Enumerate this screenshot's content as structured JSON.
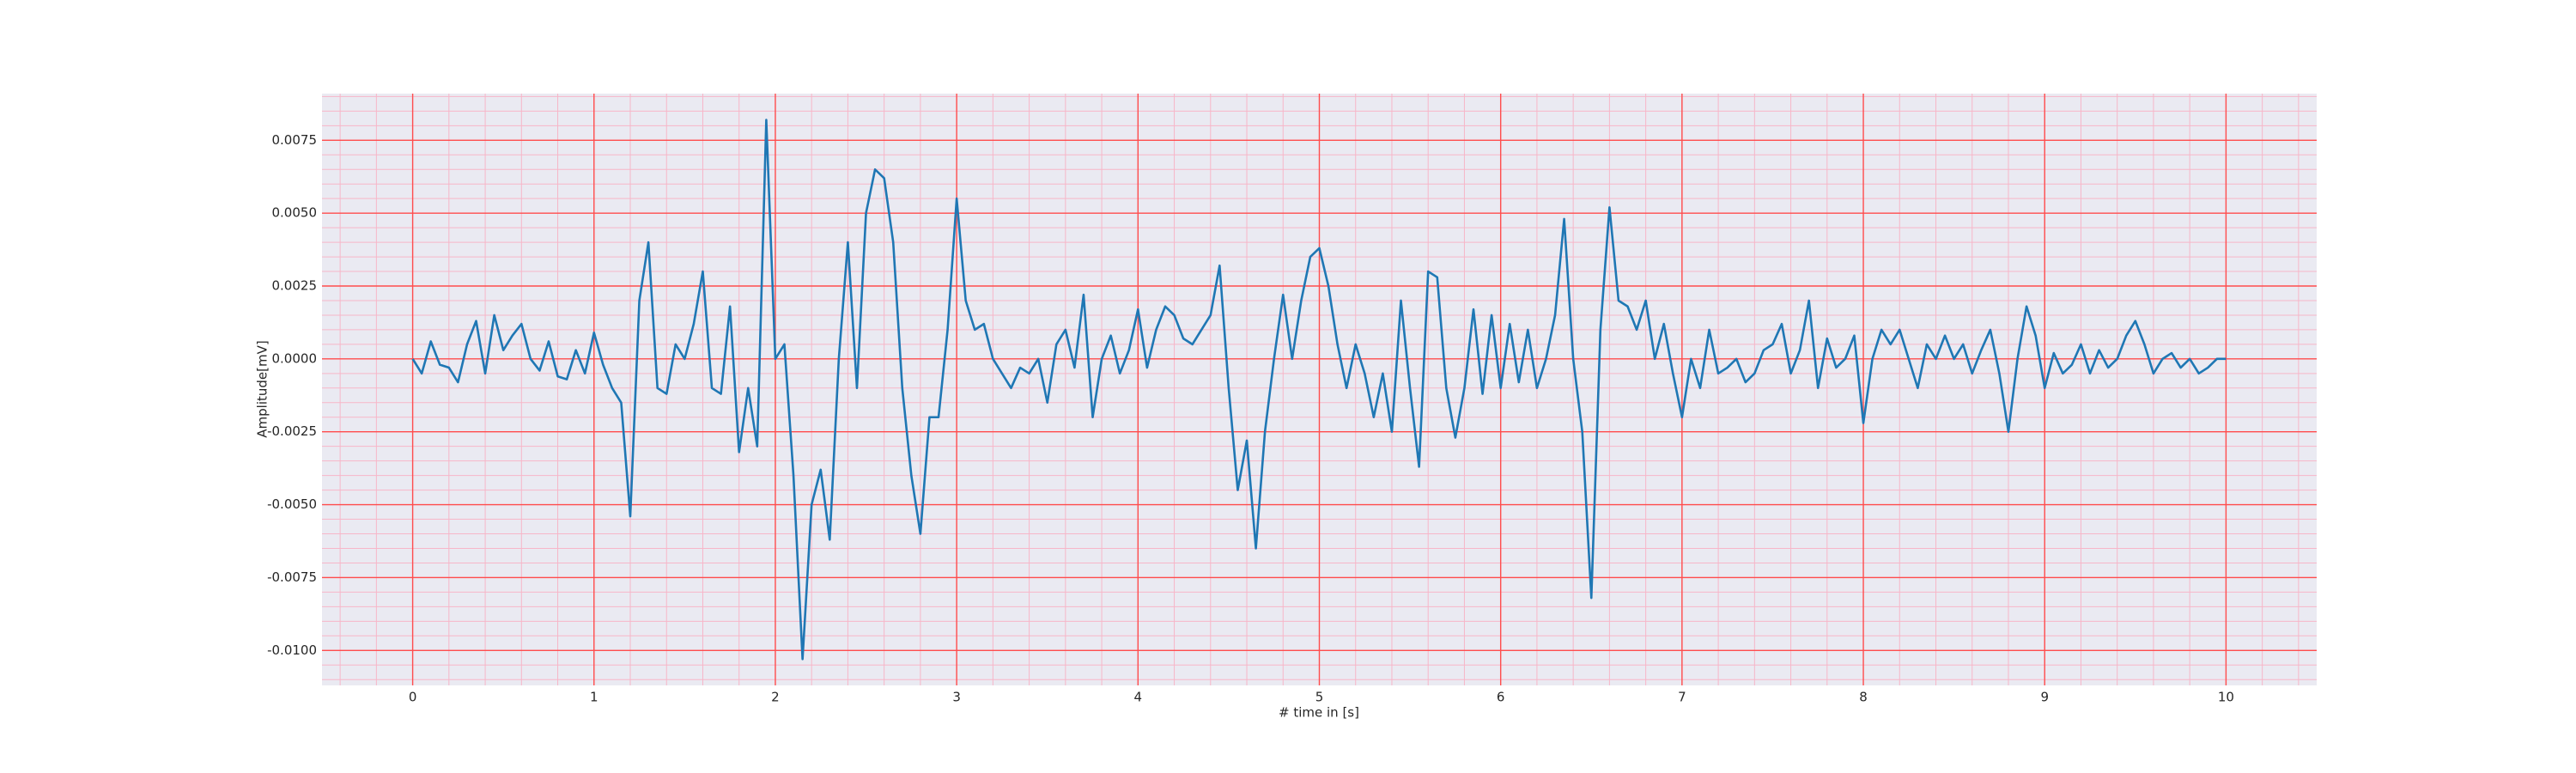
{
  "chart_data": {
    "type": "line",
    "x_label": "# time in [s]",
    "y_label": "Amplitude[mV]",
    "x": [
      0,
      0.05,
      0.1,
      0.15,
      0.2,
      0.25,
      0.3,
      0.35,
      0.4,
      0.45,
      0.5,
      0.55,
      0.6,
      0.65,
      0.7,
      0.75,
      0.8,
      0.85,
      0.9,
      0.95,
      1,
      1.05,
      1.1,
      1.15,
      1.2,
      1.25,
      1.3,
      1.35,
      1.4,
      1.45,
      1.5,
      1.55,
      1.6,
      1.65,
      1.7,
      1.75,
      1.8,
      1.85,
      1.9,
      1.95,
      2,
      2.05,
      2.1,
      2.15,
      2.2,
      2.25,
      2.3,
      2.35,
      2.4,
      2.45,
      2.5,
      2.55,
      2.6,
      2.65,
      2.7,
      2.75,
      2.8,
      2.85,
      2.9,
      2.95,
      3,
      3.05,
      3.1,
      3.15,
      3.2,
      3.25,
      3.3,
      3.35,
      3.4,
      3.45,
      3.5,
      3.55,
      3.6,
      3.65,
      3.7,
      3.75,
      3.8,
      3.85,
      3.9,
      3.95,
      4,
      4.05,
      4.1,
      4.15,
      4.2,
      4.25,
      4.3,
      4.35,
      4.4,
      4.45,
      4.5,
      4.55,
      4.6,
      4.65,
      4.7,
      4.75,
      4.8,
      4.85,
      4.9,
      4.95,
      5,
      5.05,
      5.1,
      5.15,
      5.2,
      5.25,
      5.3,
      5.35,
      5.4,
      5.45,
      5.5,
      5.55,
      5.6,
      5.65,
      5.7,
      5.75,
      5.8,
      5.85,
      5.9,
      5.95,
      6,
      6.05,
      6.1,
      6.15,
      6.2,
      6.25,
      6.3,
      6.35,
      6.4,
      6.45,
      6.5,
      6.55,
      6.6,
      6.65,
      6.7,
      6.75,
      6.8,
      6.85,
      6.9,
      6.95,
      7,
      7.05,
      7.1,
      7.15,
      7.2,
      7.25,
      7.3,
      7.35,
      7.4,
      7.45,
      7.5,
      7.55,
      7.6,
      7.65,
      7.7,
      7.75,
      7.8,
      7.85,
      7.9,
      7.95,
      8,
      8.05,
      8.1,
      8.15,
      8.2,
      8.25,
      8.3,
      8.35,
      8.4,
      8.45,
      8.5,
      8.55,
      8.6,
      8.65,
      8.7,
      8.75,
      8.8,
      8.85,
      8.9,
      8.95,
      9,
      9.05,
      9.1,
      9.15,
      9.2,
      9.25,
      9.3,
      9.35,
      9.4,
      9.45,
      9.5,
      9.55,
      9.6,
      9.65,
      9.7,
      9.75,
      9.8,
      9.85,
      9.9,
      9.95,
      10
    ],
    "series": [
      {
        "color": "#1f77b4",
        "values": [
          0,
          -0.0005,
          0.0006,
          -0.0002,
          -0.0003,
          -0.0008,
          0.0005,
          0.0013,
          -0.0005,
          0.0015,
          0.0003,
          0.0008,
          0.0012,
          0,
          -0.0004,
          0.0006,
          -0.0006,
          -0.0007,
          0.0003,
          -0.0005,
          0.0009,
          -0.0002,
          -0.001,
          -0.0015,
          -0.0054,
          0.002,
          0.004,
          -0.001,
          -0.0012,
          0.0005,
          0,
          0.0012,
          0.003,
          -0.001,
          -0.0012,
          0.0018,
          -0.0032,
          -0.001,
          -0.003,
          0.0082,
          0,
          0.0005,
          -0.004,
          -0.0103,
          -0.005,
          -0.0038,
          -0.0062,
          0,
          0.004,
          -0.001,
          0.005,
          0.0065,
          0.0062,
          0.004,
          -0.001,
          -0.004,
          -0.006,
          -0.002,
          -0.002,
          0.001,
          0.0055,
          0.002,
          0.001,
          0.0012,
          0,
          -0.0005,
          -0.001,
          -0.0003,
          -0.0005,
          0,
          -0.0015,
          0.0005,
          0.001,
          -0.0003,
          0.0022,
          -0.002,
          0,
          0.0008,
          -0.0005,
          0.0003,
          0.0017,
          -0.0003,
          0.001,
          0.0018,
          0.0015,
          0.0007,
          0.0005,
          0.001,
          0.0015,
          0.0032,
          -0.001,
          -0.0045,
          -0.0028,
          -0.0065,
          -0.0025,
          0,
          0.0022,
          0,
          0.002,
          0.0035,
          0.0038,
          0.0025,
          0.0005,
          -0.001,
          0.0005,
          -0.0005,
          -0.002,
          -0.0005,
          -0.0025,
          0.002,
          -0.001,
          -0.0037,
          0.003,
          0.0028,
          -0.001,
          -0.0027,
          -0.001,
          0.0017,
          -0.0012,
          0.0015,
          -0.001,
          0.0012,
          -0.0008,
          0.001,
          -0.001,
          0,
          0.0015,
          0.0048,
          0,
          -0.0025,
          -0.0082,
          0.001,
          0.0052,
          0.002,
          0.0018,
          0.001,
          0.002,
          0,
          0.0012,
          -0.0005,
          -0.002,
          0,
          -0.001,
          0.001,
          -0.0005,
          -0.0003,
          0,
          -0.0008,
          -0.0005,
          0.0003,
          0.0005,
          0.0012,
          -0.0005,
          0.0003,
          0.002,
          -0.001,
          0.0007,
          -0.0003,
          0,
          0.0008,
          -0.0022,
          0,
          0.001,
          0.0005,
          0.001,
          0,
          -0.001,
          0.0005,
          0,
          0.0008,
          0,
          0.0005,
          -0.0005,
          0.0003,
          0.001,
          -0.0005,
          -0.0025,
          0,
          0.0018,
          0.0008,
          -0.001,
          0.0002,
          -0.0005,
          -0.0002,
          0.0005,
          -0.0005,
          0.0003,
          -0.0003,
          0,
          0.0008,
          0.0013,
          0.0005,
          -0.0005,
          0,
          0.0002,
          -0.0003,
          0,
          -0.0005,
          -0.0003,
          0,
          0
        ]
      }
    ],
    "xlim": [
      -0.5,
      10.5
    ],
    "ylim": [
      -0.0112,
      0.0091
    ],
    "xticks": [
      0,
      1,
      2,
      3,
      4,
      5,
      6,
      7,
      8,
      9,
      10
    ],
    "yticks": [
      {
        "value": -0.01,
        "label": "-0.0100"
      },
      {
        "value": -0.0075,
        "label": "-0.0075"
      },
      {
        "value": -0.005,
        "label": "-0.0050"
      },
      {
        "value": -0.0025,
        "label": "-0.0025"
      },
      {
        "value": 0,
        "label": "0.0000"
      },
      {
        "value": 0.0025,
        "label": "0.0025"
      },
      {
        "value": 0.005,
        "label": "0.0050"
      },
      {
        "value": 0.0075,
        "label": "0.0075"
      }
    ],
    "grid": true,
    "grid_color": "#ff4d4d",
    "minor_grid": {
      "x_step": 0.2,
      "y_step": 0.0005,
      "color": "#f7b6c8"
    },
    "background": "#eaeaf2"
  }
}
